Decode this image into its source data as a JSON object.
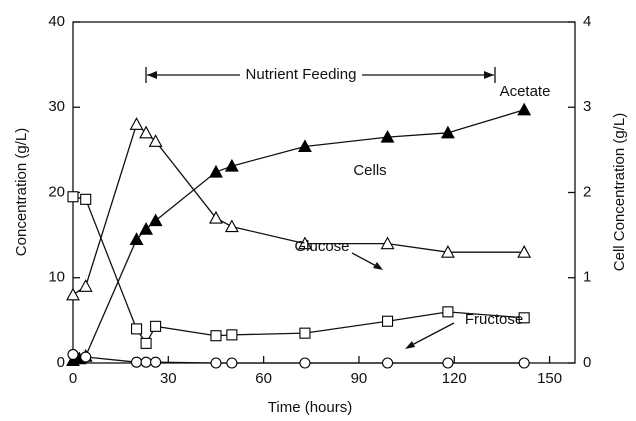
{
  "chart_data": {
    "type": "scatter",
    "x_label": "Time (hours)",
    "y_label": "Concentration (g/L)",
    "y2_label": "Cell Concentration (g/L)",
    "annotation": "Nutrient Feeding",
    "xlim": [
      0,
      158
    ],
    "xticks": [
      0,
      30,
      60,
      90,
      120,
      150
    ],
    "ylim": [
      0,
      40
    ],
    "yticks": [
      0,
      10,
      20,
      30,
      40
    ],
    "y2lim": [
      0,
      4
    ],
    "y2ticks": [
      0,
      1,
      2,
      3,
      4
    ],
    "series": [
      {
        "name": "Acetate",
        "color": "#000000",
        "marker": "triangle",
        "filled": true,
        "x": [
          0,
          2,
          4,
          20,
          23,
          26,
          45,
          50,
          73,
          99,
          118,
          142
        ],
        "values": [
          0.3,
          0.5,
          0.8,
          14.5,
          15.7,
          16.7,
          22.4,
          23.1,
          25.4,
          26.5,
          27,
          29.7
        ]
      },
      {
        "name": "Cells",
        "color": "#000000",
        "marker": "triangle",
        "filled": false,
        "axis": "y2",
        "x": [
          0,
          4,
          20,
          23,
          26,
          45,
          50,
          73,
          99,
          118,
          142
        ],
        "values": [
          0.8,
          0.9,
          2.8,
          2.7,
          2.6,
          1.7,
          1.6,
          1.4,
          1.4,
          1.3,
          1.3
        ]
      },
      {
        "name": "Glucose",
        "color": "#000000",
        "marker": "square",
        "filled": false,
        "x": [
          0,
          4,
          20,
          23,
          26,
          45,
          50,
          73,
          99,
          118,
          142
        ],
        "values": [
          19.5,
          19.2,
          4,
          2.3,
          4.3,
          3.2,
          3.3,
          3.5,
          4.9,
          6,
          5.3
        ]
      },
      {
        "name": "Fructose",
        "color": "#000000",
        "marker": "circle",
        "filled": false,
        "x": [
          0,
          4,
          20,
          23,
          26,
          45,
          50,
          73,
          99,
          118,
          142
        ],
        "values": [
          1,
          0.7,
          0.1,
          0.1,
          0.1,
          0,
          0,
          0,
          0,
          0,
          0
        ]
      }
    ]
  }
}
